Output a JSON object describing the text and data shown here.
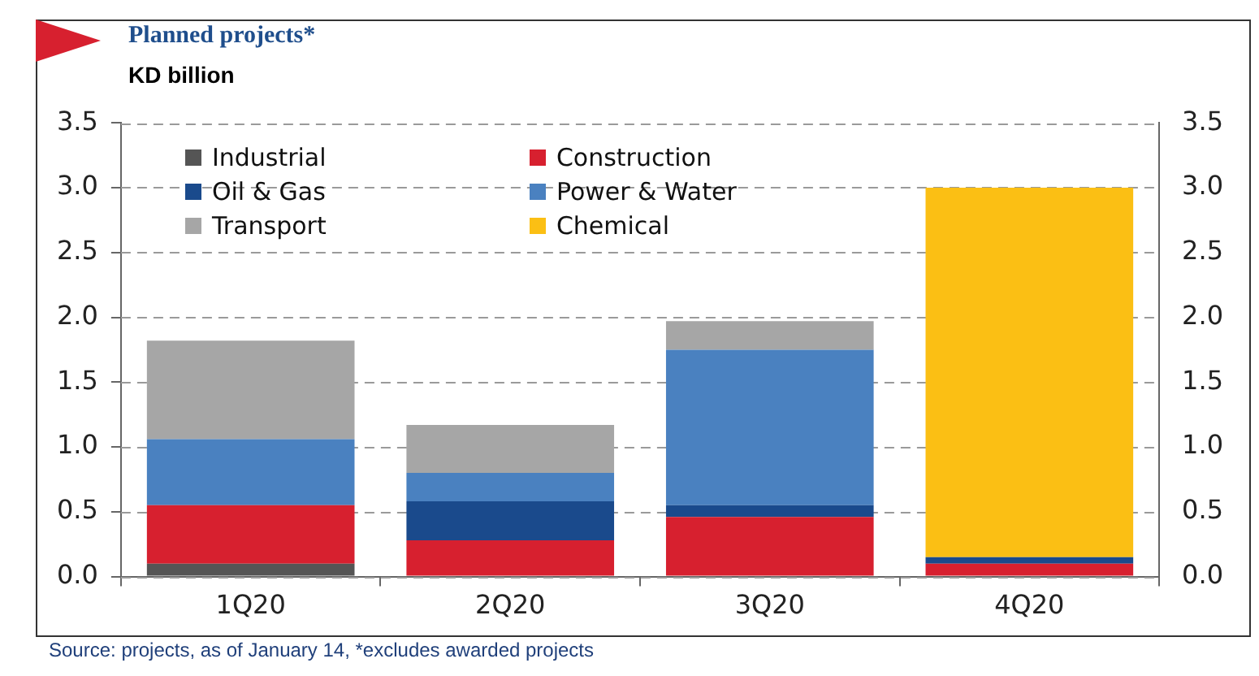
{
  "chart_data": {
    "type": "bar",
    "title": "Planned projects*",
    "subtitle": "KD billion",
    "stacked": true,
    "categories": [
      "1Q20",
      "2Q20",
      "3Q20",
      "4Q20"
    ],
    "series": [
      {
        "name": "Industrial",
        "color": "#555555",
        "values": [
          0.1,
          0,
          0,
          0
        ]
      },
      {
        "name": "Construction",
        "color": "#d7202f",
        "values": [
          0.45,
          0.28,
          0.46,
          0.1
        ]
      },
      {
        "name": "Oil & Gas",
        "color": "#1a4a8c",
        "values": [
          0,
          0.3,
          0.09,
          0.05
        ]
      },
      {
        "name": "Power & Water",
        "color": "#4a81c0",
        "values": [
          0.51,
          0.22,
          1.2,
          0
        ]
      },
      {
        "name": "Transport",
        "color": "#a6a6a6",
        "values": [
          0.76,
          0.37,
          0.22,
          0
        ]
      },
      {
        "name": "Chemical",
        "color": "#fbbf14",
        "values": [
          0,
          0,
          0,
          2.85
        ]
      }
    ],
    "ylim": [
      0,
      3.5
    ],
    "yticks": [
      {
        "value": 0,
        "label": "0.0"
      },
      {
        "value": 0.5,
        "label": "0.5"
      },
      {
        "value": 1,
        "label": "1.0"
      },
      {
        "value": 1.5,
        "label": "1.5"
      },
      {
        "value": 2,
        "label": "2.0"
      },
      {
        "value": 2.5,
        "label": "2.5"
      },
      {
        "value": 3,
        "label": "3.0"
      },
      {
        "value": 3.5,
        "label": "3.5"
      }
    ],
    "y2lim": [
      0,
      3.5
    ],
    "y2ticks": [
      {
        "value": 0,
        "label": "0.0"
      },
      {
        "value": 0.5,
        "label": "0.5"
      },
      {
        "value": 1,
        "label": "1.0"
      },
      {
        "value": 1.5,
        "label": "1.5"
      },
      {
        "value": 2,
        "label": "2.0"
      },
      {
        "value": 2.5,
        "label": "2.5"
      },
      {
        "value": 3,
        "label": "3.0"
      },
      {
        "value": 3.5,
        "label": "3.5"
      }
    ],
    "grid": "y",
    "legend": "top left",
    "annotations": [
      "Source: projects, as of January 14, *excludes awarded projects"
    ]
  }
}
